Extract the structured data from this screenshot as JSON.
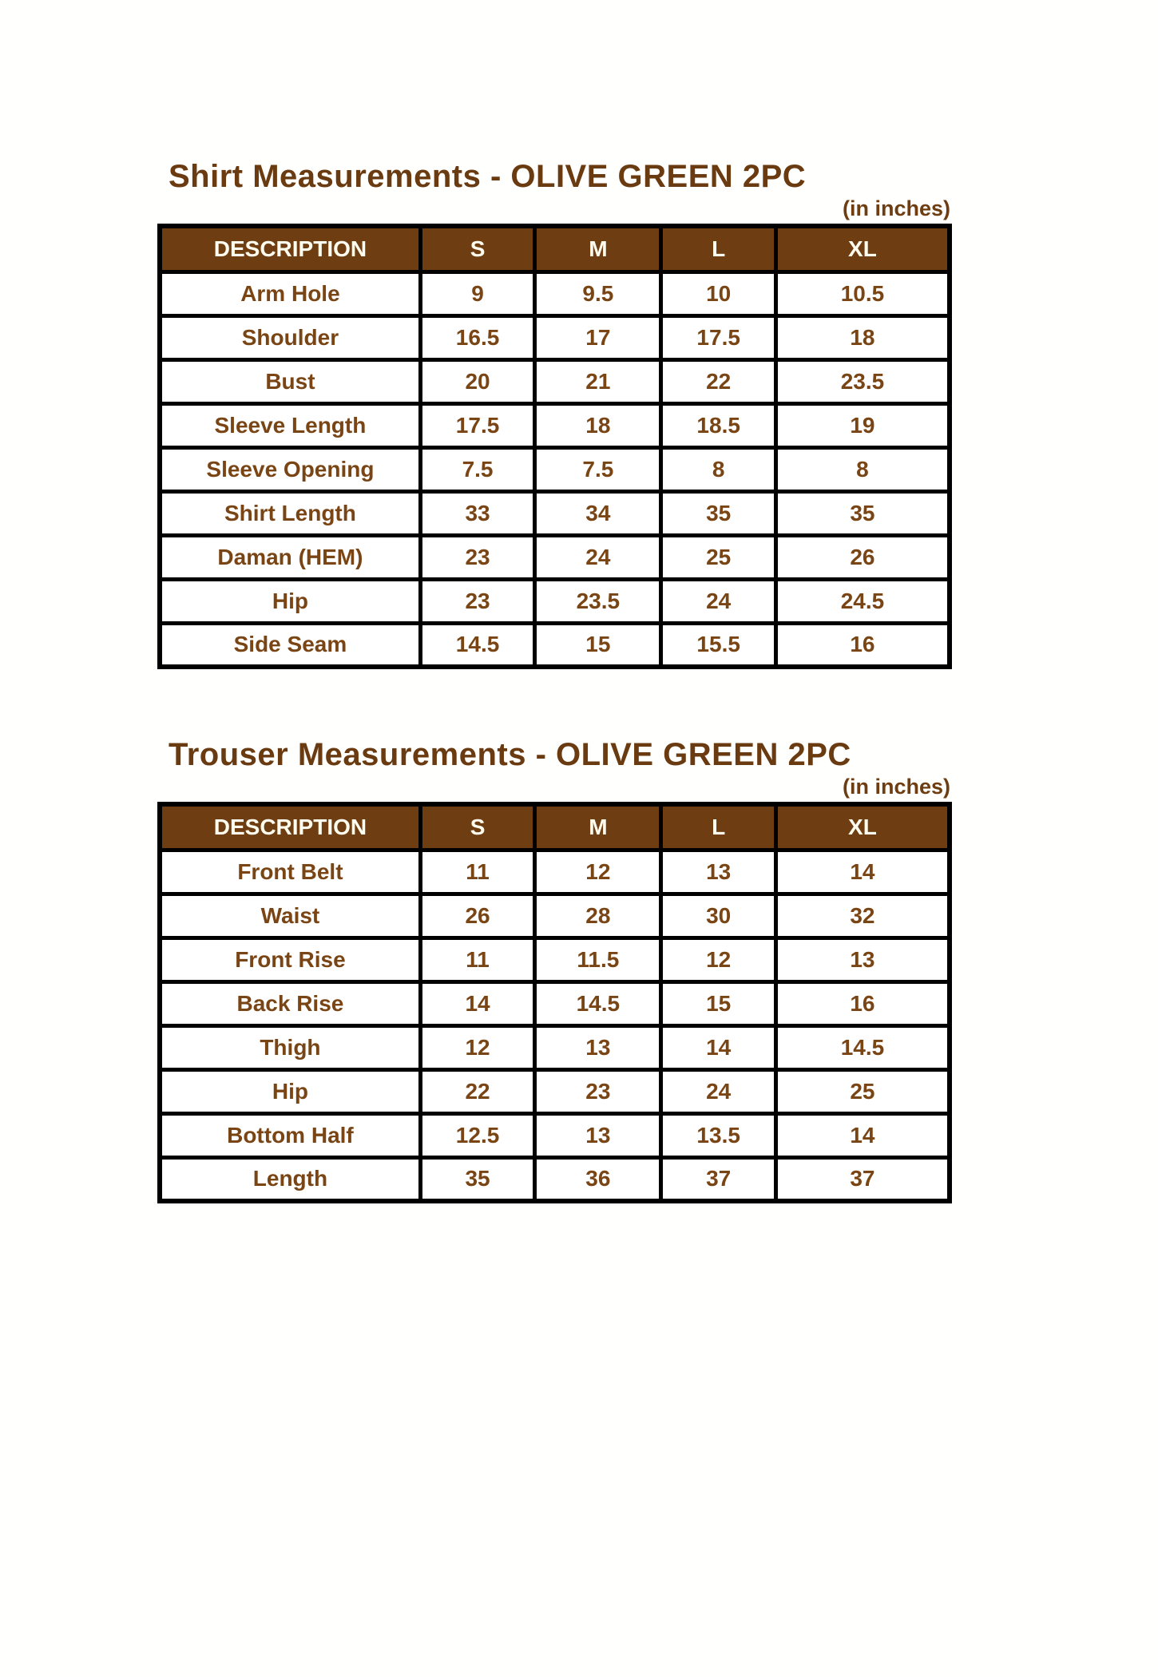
{
  "colors": {
    "title_brown": "#6A3A10",
    "header_bg_brown": "#6E3E12",
    "header_text_cream": "#FFFDF0",
    "cell_text_brown": "#7A4515",
    "border_black": "#000000",
    "page_background": "#FFFFFF"
  },
  "shirt_section": {
    "title": "Shirt Measurements - OLIVE GREEN 2PC",
    "unit_note": "(in inches)",
    "table": {
      "columns": [
        "DESCRIPTION",
        "S",
        "M",
        "L",
        "XL"
      ],
      "rows": [
        {
          "label": "Arm Hole",
          "values": [
            "9",
            "9.5",
            "10",
            "10.5"
          ]
        },
        {
          "label": "Shoulder",
          "values": [
            "16.5",
            "17",
            "17.5",
            "18"
          ]
        },
        {
          "label": "Bust",
          "values": [
            "20",
            "21",
            "22",
            "23.5"
          ]
        },
        {
          "label": "Sleeve Length",
          "values": [
            "17.5",
            "18",
            "18.5",
            "19"
          ]
        },
        {
          "label": "Sleeve Opening",
          "values": [
            "7.5",
            "7.5",
            "8",
            "8"
          ]
        },
        {
          "label": "Shirt Length",
          "values": [
            "33",
            "34",
            "35",
            "35"
          ]
        },
        {
          "label": "Daman (HEM)",
          "values": [
            "23",
            "24",
            "25",
            "26"
          ]
        },
        {
          "label": "Hip",
          "values": [
            "23",
            "23.5",
            "24",
            "24.5"
          ]
        },
        {
          "label": "Side Seam",
          "values": [
            "14.5",
            "15",
            "15.5",
            "16"
          ]
        }
      ]
    }
  },
  "trouser_section": {
    "title": "Trouser Measurements - OLIVE GREEN 2PC",
    "unit_note": "(in inches)",
    "table": {
      "columns": [
        "DESCRIPTION",
        "S",
        "M",
        "L",
        "XL"
      ],
      "rows": [
        {
          "label": "Front Belt",
          "values": [
            "11",
            "12",
            "13",
            "14"
          ]
        },
        {
          "label": "Waist",
          "values": [
            "26",
            "28",
            "30",
            "32"
          ]
        },
        {
          "label": "Front Rise",
          "values": [
            "11",
            "11.5",
            "12",
            "13"
          ]
        },
        {
          "label": "Back Rise",
          "values": [
            "14",
            "14.5",
            "15",
            "16"
          ]
        },
        {
          "label": "Thigh",
          "values": [
            "12",
            "13",
            "14",
            "14.5"
          ]
        },
        {
          "label": "Hip",
          "values": [
            "22",
            "23",
            "24",
            "25"
          ]
        },
        {
          "label": "Bottom Half",
          "values": [
            "12.5",
            "13",
            "13.5",
            "14"
          ]
        },
        {
          "label": "Length",
          "values": [
            "35",
            "36",
            "37",
            "37"
          ]
        }
      ]
    }
  }
}
